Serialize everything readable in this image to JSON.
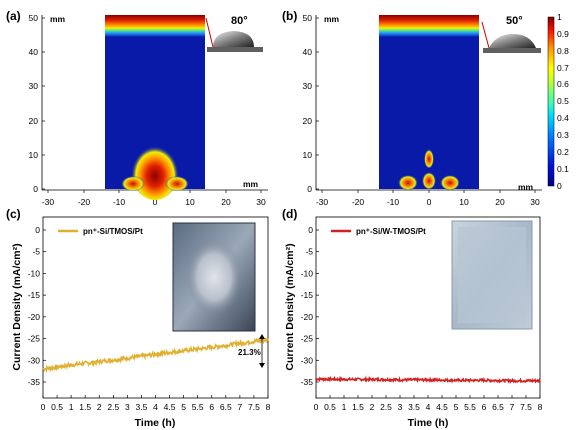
{
  "panels": {
    "a": {
      "label": "(a)",
      "unit_top": "mm",
      "unit_bottom": "mm",
      "angle": "80°",
      "y_ticks": [
        "0",
        "10",
        "20",
        "30",
        "40",
        "50"
      ],
      "x_ticks": [
        "-30",
        "-20",
        "-10",
        "0",
        "10",
        "20",
        "30"
      ]
    },
    "b": {
      "label": "(b)",
      "unit_top": "mm",
      "unit_bottom": "mm",
      "angle": "50°",
      "y_ticks": [
        "0",
        "10",
        "20",
        "30",
        "40",
        "50"
      ],
      "x_ticks": [
        "-30",
        "-20",
        "-10",
        "0",
        "10",
        "20",
        "30"
      ]
    },
    "colorbar": {
      "ticks": [
        "0",
        "0.1",
        "0.2",
        "0.3",
        "0.4",
        "0.5",
        "0.6",
        "0.7",
        "0.8",
        "0.9",
        "1"
      ]
    },
    "c": {
      "label": "(c)",
      "legend": "pn⁺-Si/TMOS/Pt",
      "annotation": "21.3%",
      "series_color": "#e0b030"
    },
    "d": {
      "label": "(d)",
      "legend": "pn⁺-Si/W-TMOS/Pt",
      "series_color": "#d42020"
    }
  },
  "chart_data": [
    {
      "type": "line",
      "panel": "c",
      "xlabel": "Time (h)",
      "ylabel": "Current Density (mA/cm²)",
      "xlim": [
        0,
        8
      ],
      "ylim": [
        -35,
        0
      ],
      "x_ticks": [
        "0",
        "0.5",
        "1",
        "1.5",
        "2",
        "2.5",
        "3",
        "3.5",
        "4",
        "4.5",
        "5",
        "5.5",
        "6",
        "6.5",
        "7",
        "7.5",
        "8"
      ],
      "y_ticks": [
        "0",
        "-5",
        "-10",
        "-15",
        "-20",
        "-25",
        "-30",
        "-35"
      ],
      "series": [
        {
          "name": "pn⁺-Si/TMOS/Pt",
          "x": [
            0,
            1,
            2,
            3,
            4,
            5,
            6,
            7,
            8
          ],
          "y": [
            -32.0,
            -31.1,
            -30.3,
            -29.5,
            -28.6,
            -27.8,
            -27.0,
            -26.1,
            -25.2
          ]
        }
      ]
    },
    {
      "type": "line",
      "panel": "d",
      "xlabel": "Time (h)",
      "ylabel": "Current Density (mA/cm²)",
      "xlim": [
        0,
        8
      ],
      "ylim": [
        -35,
        0
      ],
      "x_ticks": [
        "0",
        "0.5",
        "1",
        "1.5",
        "2",
        "2.5",
        "3",
        "3.5",
        "4",
        "4.5",
        "5",
        "5.5",
        "6",
        "6.5",
        "7",
        "7.5",
        "8"
      ],
      "y_ticks": [
        "0",
        "-5",
        "-10",
        "-15",
        "-20",
        "-25",
        "-30",
        "-35"
      ],
      "series": [
        {
          "name": "pn⁺-Si/W-TMOS/Pt",
          "x": [
            0,
            1,
            2,
            3,
            4,
            5,
            6,
            7,
            8
          ],
          "y": [
            -34.3,
            -34.4,
            -34.4,
            -34.5,
            -34.5,
            -34.6,
            -34.6,
            -34.7,
            -34.7
          ]
        }
      ]
    }
  ]
}
